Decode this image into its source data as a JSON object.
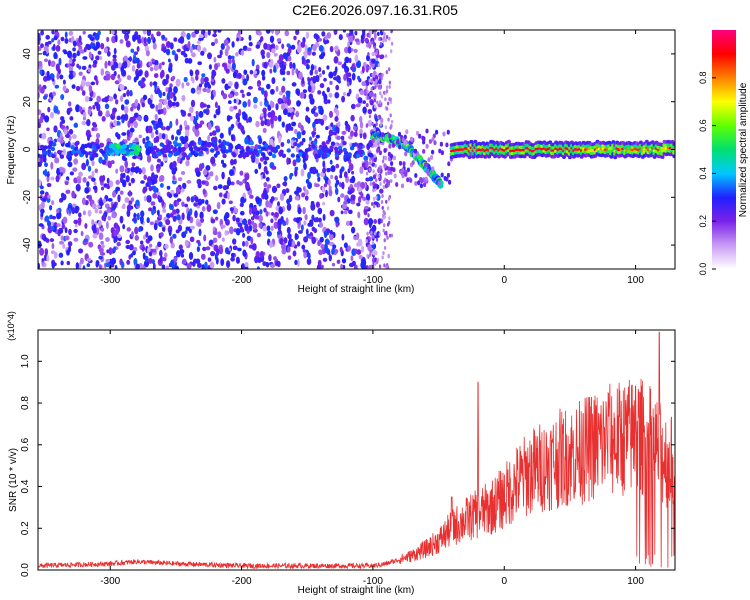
{
  "page_title": "C2E6.2026.097.16.31.R05",
  "chart_data": [
    {
      "type": "heatmap",
      "title": "C2E6.2026.097.16.31.R05",
      "xlabel": "Height of straight line (km)",
      "ylabel": "Frequency (Hz)",
      "xlim": [
        -355,
        130
      ],
      "ylim": [
        -50,
        50
      ],
      "xticks": [
        -300,
        -200,
        -100,
        0,
        100
      ],
      "xtick_labels": [
        "-300",
        "-200",
        "-100",
        "0",
        "100"
      ],
      "yticks": [
        -40,
        -20,
        0,
        20,
        40
      ],
      "ytick_labels": [
        "-40",
        "-20",
        "0",
        "20",
        "40"
      ],
      "colorbar": {
        "label": "Normalized spectral amplitude",
        "range": [
          0,
          1
        ],
        "ticks": [
          0.0,
          0.2,
          0.4,
          0.6,
          0.8
        ],
        "tick_labels": [
          "0.0",
          "0.2",
          "0.4",
          "0.6",
          "0.8"
        ],
        "colors": [
          "#ffffff",
          "#c89af5",
          "#7a22e8",
          "#2020ff",
          "#00c8ff",
          "#00e070",
          "#60ff00",
          "#ffff00",
          "#ff8000",
          "#ff0000",
          "#ff0080"
        ]
      },
      "features": [
        {
          "name": "noise",
          "x": [
            -355,
            -95
          ],
          "freq": [
            -50,
            50
          ],
          "amplitude": 0.2
        },
        {
          "name": "low-band",
          "x": [
            -355,
            -100
          ],
          "freq": 0,
          "amplitude": 0.3
        },
        {
          "name": "descending-track",
          "points": [
            [
              -100,
              6
            ],
            [
              -85,
              4
            ],
            [
              -75,
              2
            ],
            [
              -65,
              -4
            ],
            [
              -55,
              -10
            ],
            [
              -48,
              -15
            ]
          ],
          "amplitude": 0.6
        },
        {
          "name": "steady-tone",
          "x": [
            -40,
            130
          ],
          "freq": 0,
          "amplitude": 0.95
        }
      ]
    },
    {
      "type": "line",
      "xlabel": "Height of straight line (km)",
      "ylabel": "SNR (10 * v/v)",
      "y_multiplier": "(x10^4)",
      "xlim": [
        -355,
        130
      ],
      "ylim": [
        0,
        1.15
      ],
      "xticks": [
        -300,
        -200,
        -100,
        0,
        100
      ],
      "xtick_labels": [
        "-300",
        "-200",
        "-100",
        "0",
        "100"
      ],
      "yticks": [
        0.0,
        0.2,
        0.4,
        0.6,
        0.8,
        1.0
      ],
      "ytick_labels": [
        "0.0",
        "0.2",
        "0.4",
        "0.6",
        "0.8",
        "1.0"
      ],
      "series": [
        {
          "name": "SNR",
          "color": "#e83030",
          "x": [
            -355,
            -300,
            -280,
            -250,
            -200,
            -150,
            -110,
            -100,
            -90,
            -80,
            -70,
            -60,
            -50,
            -40,
            -30,
            -20,
            -10,
            0,
            10,
            20,
            30,
            40,
            50,
            60,
            70,
            80,
            90,
            100,
            110,
            120,
            130
          ],
          "y": [
            0.02,
            0.03,
            0.04,
            0.03,
            0.02,
            0.02,
            0.02,
            0.02,
            0.03,
            0.05,
            0.07,
            0.1,
            0.14,
            0.2,
            0.24,
            0.27,
            0.3,
            0.35,
            0.42,
            0.47,
            0.5,
            0.53,
            0.55,
            0.57,
            0.6,
            0.62,
            0.63,
            0.65,
            0.62,
            0.55,
            0.5
          ],
          "spikes": [
            {
              "x": -40,
              "y": 0.35
            },
            {
              "x": -20,
              "y": 0.9
            },
            {
              "x": 60,
              "y": 0.75
            },
            {
              "x": 80,
              "y": 0.8
            },
            {
              "x": 100,
              "y": 0.88
            },
            {
              "x": 118,
              "y": 1.14
            }
          ]
        }
      ]
    }
  ]
}
